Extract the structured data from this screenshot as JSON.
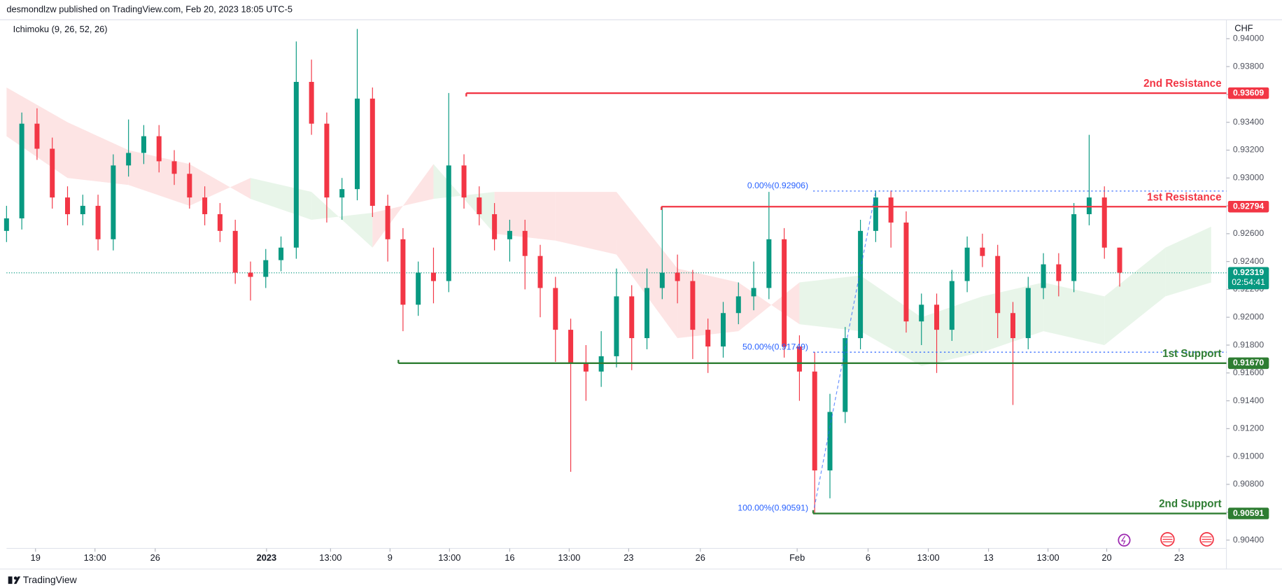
{
  "header": "desmondlzw published on TradingView.com, Feb 20, 2023 18:05 UTC-5",
  "footer": "TradingView",
  "chart_data": {
    "type": "candlestick",
    "indicator_label": "Ichimoku (9, 26, 52, 26)",
    "currency": "CHF",
    "up_color": "#089981",
    "down_color": "#f23645",
    "xlim": [
      0,
      160
    ],
    "ylim": [
      0.9034,
      0.9413
    ],
    "x": [
      0,
      2,
      4,
      6,
      8,
      10,
      12,
      14,
      16,
      18,
      20,
      22,
      24,
      26,
      28,
      30,
      32,
      34,
      36,
      38,
      40,
      42,
      44,
      46,
      48,
      50,
      52,
      54,
      56,
      58,
      60,
      62,
      64,
      66,
      68,
      70,
      72,
      74,
      76,
      78,
      80,
      82,
      84,
      86,
      88,
      90,
      92,
      94,
      96,
      98,
      100,
      102,
      104,
      106,
      108,
      110,
      112,
      114,
      116,
      118,
      120,
      122,
      124,
      126,
      128,
      130,
      132,
      134,
      136,
      138,
      140,
      142,
      144,
      146
    ],
    "open": [
      0.9262,
      0.9271,
      0.9339,
      0.9321,
      0.9286,
      0.9274,
      0.928,
      0.9256,
      0.9309,
      0.9318,
      0.933,
      0.9312,
      0.9303,
      0.9286,
      0.9274,
      0.9262,
      0.9232,
      0.9229,
      0.9241,
      0.925,
      0.9369,
      0.9339,
      0.9286,
      0.9292,
      0.9357,
      0.928,
      0.9256,
      0.9209,
      0.9232,
      0.9226,
      0.9309,
      0.9286,
      0.9274,
      0.9256,
      0.9262,
      0.9244,
      0.9221,
      0.9191,
      0.9167,
      0.9161,
      0.9172,
      0.9215,
      0.9185,
      0.9221,
      0.9232,
      0.9226,
      0.9191,
      0.9179,
      0.9203,
      0.9215,
      0.9221,
      0.9256,
      0.9179,
      0.9161,
      0.909,
      0.9132,
      0.9185,
      0.9262,
      0.9286,
      0.9268,
      0.9197,
      0.9209,
      0.9191,
      0.9226,
      0.925,
      0.9244,
      0.9203,
      0.9185,
      0.9221,
      0.9238,
      0.9226,
      0.9274,
      0.9286,
      0.925
    ],
    "high": [
      0.928,
      0.9347,
      0.935,
      0.9329,
      0.9294,
      0.9288,
      0.9288,
      0.9317,
      0.9342,
      0.9338,
      0.9338,
      0.932,
      0.9311,
      0.9294,
      0.9282,
      0.927,
      0.924,
      0.9249,
      0.9258,
      0.9398,
      0.9385,
      0.9347,
      0.93,
      0.9407,
      0.9365,
      0.9288,
      0.9264,
      0.924,
      0.925,
      0.9361,
      0.9317,
      0.9294,
      0.9282,
      0.927,
      0.927,
      0.9252,
      0.9229,
      0.9199,
      0.918,
      0.919,
      0.9235,
      0.9223,
      0.9235,
      0.9279,
      0.9245,
      0.9234,
      0.9199,
      0.9211,
      0.9225,
      0.924,
      0.929,
      0.9264,
      0.9187,
      0.9175,
      0.9145,
      0.9193,
      0.927,
      0.9291,
      0.9291,
      0.9276,
      0.9217,
      0.9217,
      0.9234,
      0.9258,
      0.926,
      0.9252,
      0.9211,
      0.9229,
      0.9246,
      0.9246,
      0.9282,
      0.9331,
      0.9294,
      0.925
    ],
    "low": [
      0.9254,
      0.9263,
      0.9313,
      0.9278,
      0.9266,
      0.9266,
      0.9248,
      0.9248,
      0.9301,
      0.931,
      0.9304,
      0.9295,
      0.9278,
      0.9266,
      0.9254,
      0.9224,
      0.9212,
      0.9221,
      0.9233,
      0.9242,
      0.9331,
      0.9268,
      0.927,
      0.9284,
      0.9272,
      0.924,
      0.919,
      0.9201,
      0.921,
      0.9218,
      0.9278,
      0.9266,
      0.9248,
      0.924,
      0.922,
      0.92,
      0.9168,
      0.9089,
      0.914,
      0.915,
      0.9164,
      0.9162,
      0.9177,
      0.9213,
      0.921,
      0.917,
      0.916,
      0.9171,
      0.9195,
      0.9205,
      0.9213,
      0.9171,
      0.914,
      0.9059,
      0.907,
      0.9124,
      0.9177,
      0.9254,
      0.925,
      0.9189,
      0.918,
      0.916,
      0.9183,
      0.9218,
      0.9236,
      0.9185,
      0.9137,
      0.9177,
      0.9213,
      0.9215,
      0.9218,
      0.9266,
      0.9242,
      0.9222
    ],
    "close": [
      0.9271,
      0.9339,
      0.9321,
      0.9286,
      0.9274,
      0.928,
      0.9256,
      0.9309,
      0.9318,
      0.933,
      0.9312,
      0.9303,
      0.9286,
      0.9274,
      0.9262,
      0.9232,
      0.9229,
      0.9241,
      0.925,
      0.9369,
      0.9339,
      0.9286,
      0.9292,
      0.9357,
      0.928,
      0.9256,
      0.9209,
      0.9232,
      0.9226,
      0.9309,
      0.9286,
      0.9274,
      0.9256,
      0.9262,
      0.9244,
      0.9221,
      0.9191,
      0.9167,
      0.9161,
      0.9172,
      0.9215,
      0.9185,
      0.9221,
      0.9232,
      0.9226,
      0.9191,
      0.9179,
      0.9203,
      0.9215,
      0.9221,
      0.9256,
      0.9179,
      0.9161,
      0.909,
      0.9132,
      0.9185,
      0.9262,
      0.9286,
      0.9268,
      0.9197,
      0.9209,
      0.9191,
      0.9226,
      0.925,
      0.9244,
      0.9203,
      0.9185,
      0.9221,
      0.9238,
      0.9226,
      0.9274,
      0.9286,
      0.925,
      0.9232
    ],
    "cloud": {
      "up_color": "#e8f5e9",
      "down_color": "#fde4e4",
      "x": [
        0,
        8,
        16,
        24,
        32,
        40,
        48,
        56,
        64,
        72,
        80,
        88,
        96,
        104,
        112,
        120,
        128,
        136,
        144,
        152,
        158
      ],
      "span_a": [
        0.933,
        0.93,
        0.9295,
        0.928,
        0.93,
        0.929,
        0.925,
        0.931,
        0.926,
        0.9255,
        0.9245,
        0.9185,
        0.919,
        0.9225,
        0.923,
        0.92,
        0.9215,
        0.9225,
        0.9215,
        0.925,
        0.9265
      ],
      "span_b": [
        0.9365,
        0.934,
        0.932,
        0.931,
        0.9285,
        0.927,
        0.9275,
        0.9285,
        0.929,
        0.929,
        0.929,
        0.9235,
        0.9225,
        0.9195,
        0.919,
        0.9165,
        0.9175,
        0.919,
        0.918,
        0.9215,
        0.9225
      ]
    },
    "levels": [
      {
        "name": "2nd Resistance",
        "value": 0.93609,
        "from_x": 60.3,
        "color": "#f23645"
      },
      {
        "name": "1st Resistance",
        "value": 0.92794,
        "from_x": 85.9,
        "color": "#f23645"
      },
      {
        "name": "1st Support",
        "value": 0.9167,
        "value_label": "0.91670",
        "from_x": 51.4,
        "color": "#2e7d32"
      },
      {
        "name": "2nd Support",
        "value": 0.90591,
        "from_x": 105.8,
        "color": "#2e7d32"
      }
    ],
    "fib": {
      "color": "#2962ff",
      "from_x": 105.8,
      "to_x": 114,
      "levels": [
        {
          "label": "0.00%(0.92906)",
          "value": 0.92906
        },
        {
          "label": "50.00%(0.91749)",
          "value": 0.91749
        },
        {
          "label": "100.00%(0.90591)",
          "value": 0.90591
        }
      ]
    },
    "last_price": {
      "value": 0.92319,
      "countdown": "02:54:41",
      "color": "#089981"
    },
    "yticks": [
      {
        "value": 0.904,
        "label": "0.90400"
      },
      {
        "value": 0.906,
        "label": "0.90600"
      },
      {
        "value": 0.908,
        "label": "0.90800"
      },
      {
        "value": 0.91,
        "label": "0.91000"
      },
      {
        "value": 0.912,
        "label": "0.91200"
      },
      {
        "value": 0.914,
        "label": "0.91400"
      },
      {
        "value": 0.916,
        "label": "0.91600"
      },
      {
        "value": 0.918,
        "label": "0.91800"
      },
      {
        "value": 0.92,
        "label": "0.92000"
      },
      {
        "value": 0.922,
        "label": "0.92200"
      },
      {
        "value": 0.924,
        "label": "0.92400"
      },
      {
        "value": 0.926,
        "label": "0.92600"
      },
      {
        "value": 0.928,
        "label": "0.92800"
      },
      {
        "value": 0.93,
        "label": "0.93000"
      },
      {
        "value": 0.932,
        "label": "0.93200"
      },
      {
        "value": 0.934,
        "label": "0.93400"
      },
      {
        "value": 0.936,
        "label": "0.93600"
      },
      {
        "value": 0.938,
        "label": "0.93800"
      },
      {
        "value": 0.94,
        "label": "0.94000"
      }
    ],
    "xticks": [
      {
        "value": 3.8,
        "label": "19"
      },
      {
        "value": 11.6,
        "label": "13:00"
      },
      {
        "value": 19.5,
        "label": "26"
      },
      {
        "value": 34.1,
        "label": "2023"
      },
      {
        "value": 42.5,
        "label": "13:00"
      },
      {
        "value": 50.3,
        "label": "9"
      },
      {
        "value": 58.1,
        "label": "13:00"
      },
      {
        "value": 66.0,
        "label": "16"
      },
      {
        "value": 73.8,
        "label": "13:00"
      },
      {
        "value": 81.6,
        "label": "23"
      },
      {
        "value": 91.0,
        "label": "26"
      },
      {
        "value": 103.7,
        "label": "Feb"
      },
      {
        "value": 113.0,
        "label": "6"
      },
      {
        "value": 120.9,
        "label": "13:00"
      },
      {
        "value": 128.8,
        "label": "13"
      },
      {
        "value": 136.6,
        "label": "13:00"
      },
      {
        "value": 144.3,
        "label": "20"
      },
      {
        "value": 153.8,
        "label": "23"
      }
    ]
  }
}
